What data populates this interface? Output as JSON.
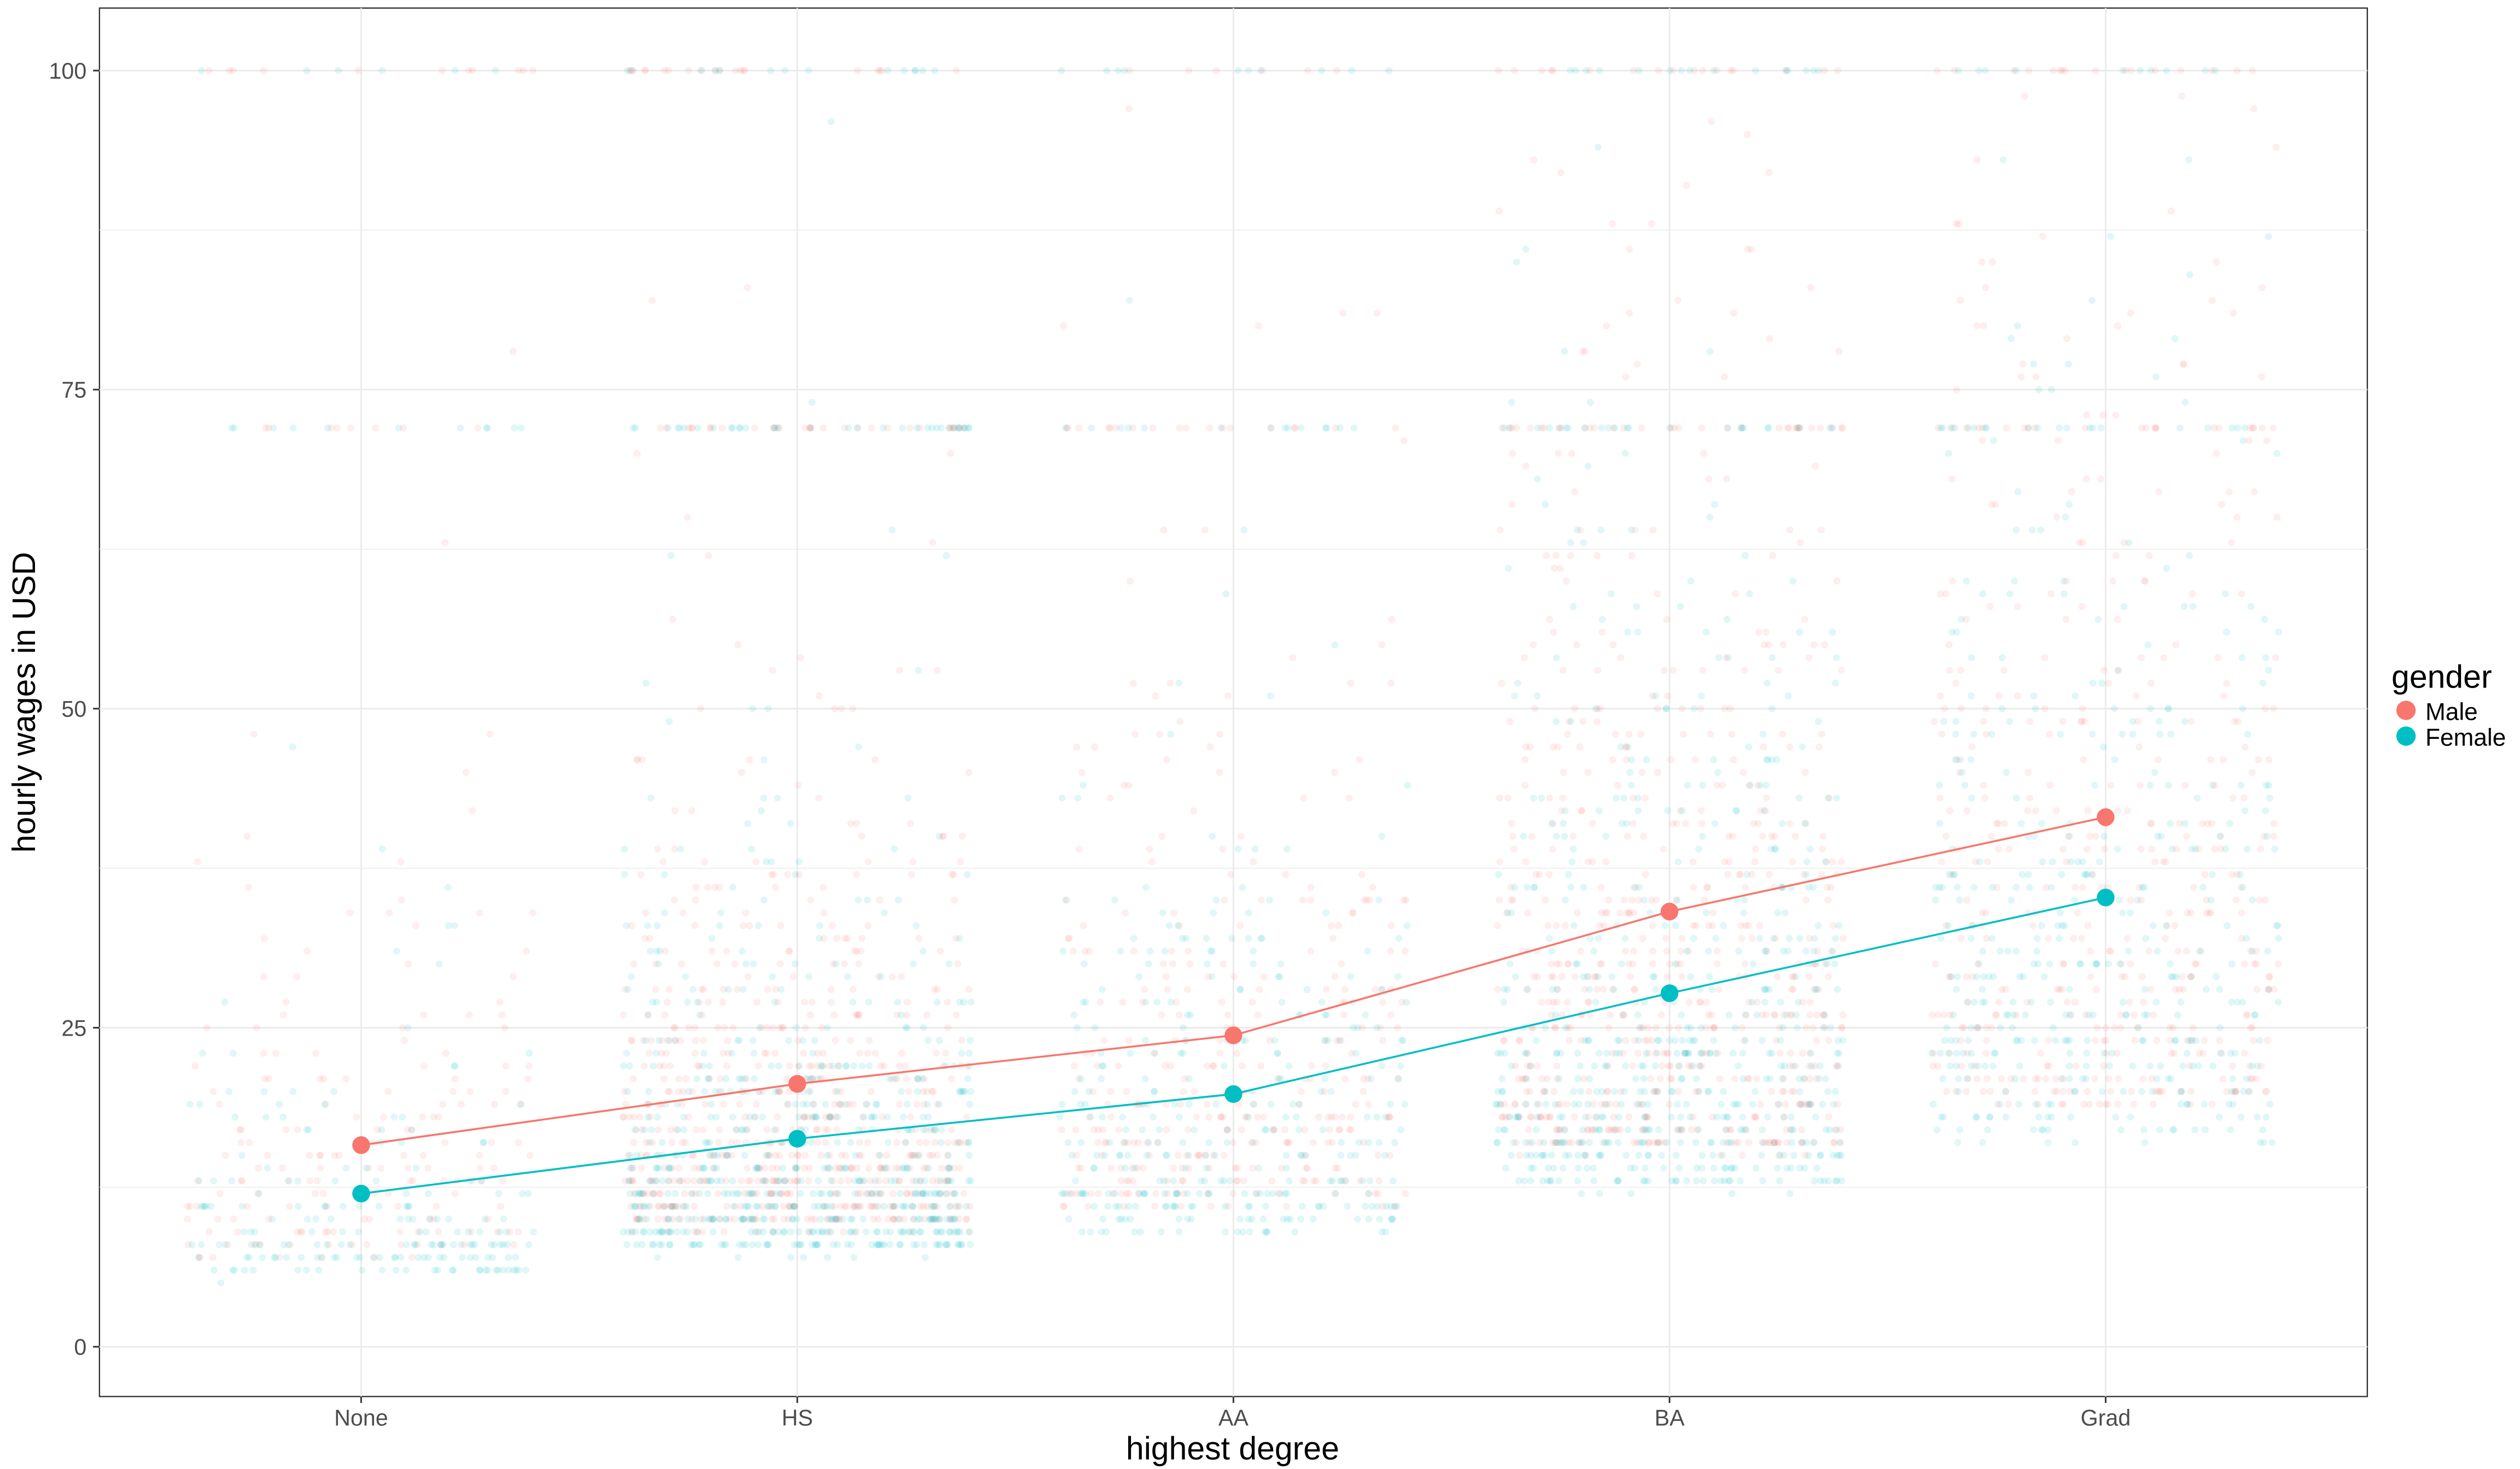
{
  "chart_data": {
    "type": "scatter",
    "title": "",
    "xlabel": "highest degree",
    "ylabel": "hourly wages in USD",
    "categories": [
      "None",
      "HS",
      "AA",
      "BA",
      "Grad"
    ],
    "yticks": [
      0,
      25,
      50,
      75,
      100
    ],
    "ylim": [
      -3.9,
      104.9
    ],
    "grid": true,
    "legend": {
      "title": "gender",
      "placement": "right",
      "entries": [
        "Male",
        "Female"
      ]
    },
    "series": [
      {
        "name": "Male",
        "color": "#F8766D",
        "values": [
          15.8,
          20.6,
          24.4,
          34.1,
          41.5
        ]
      },
      {
        "name": "Female",
        "color": "#00BFC4",
        "values": [
          12.0,
          16.3,
          19.8,
          27.7,
          35.2
        ]
      }
    ]
  }
}
